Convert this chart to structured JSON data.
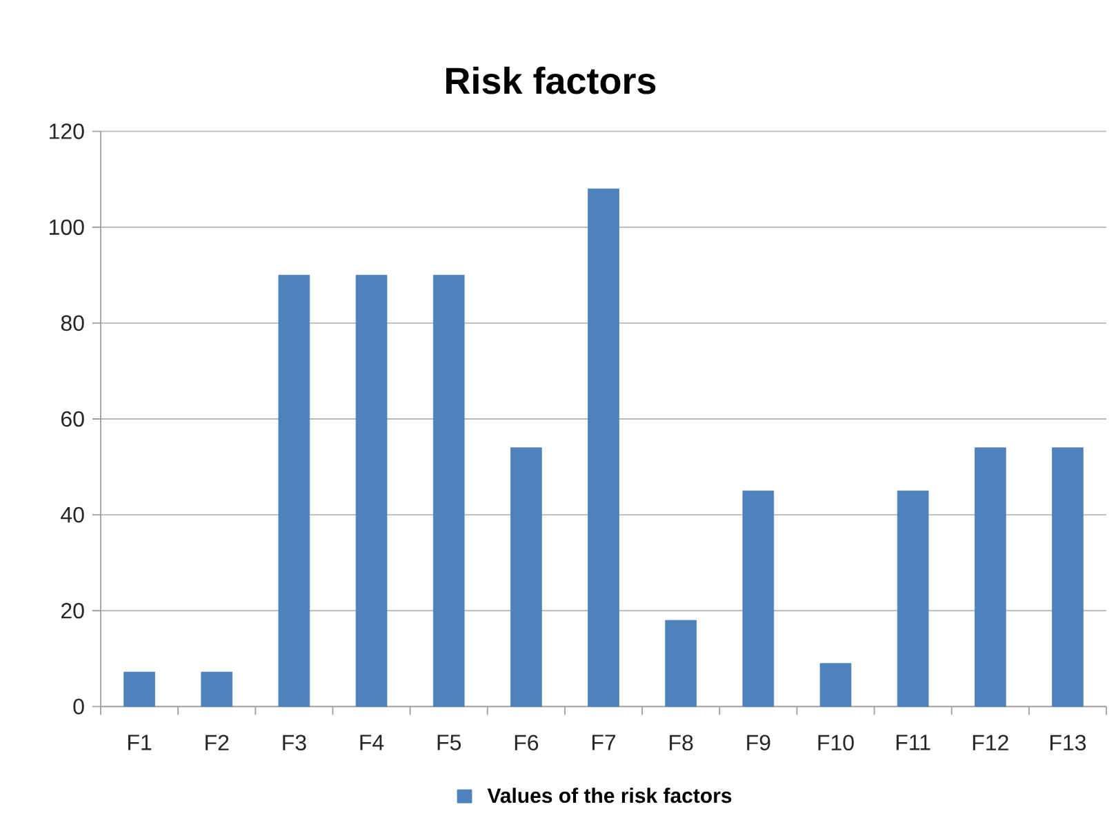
{
  "chart_data": {
    "type": "bar",
    "title": "Risk factors",
    "categories": [
      "F1",
      "F2",
      "F3",
      "F4",
      "F5",
      "F6",
      "F7",
      "F8",
      "F9",
      "F10",
      "F11",
      "F12",
      "F13"
    ],
    "series": [
      {
        "name": "Values of the risk factors",
        "color": "#4f81bd",
        "values": [
          7.2,
          7.2,
          90,
          90,
          90,
          54,
          108,
          18,
          45,
          9,
          45,
          54,
          54
        ]
      }
    ],
    "ylim": [
      0,
      120
    ],
    "yticks": [
      0,
      20,
      40,
      60,
      80,
      100,
      120
    ],
    "grid": "y",
    "legend": "bottom"
  }
}
